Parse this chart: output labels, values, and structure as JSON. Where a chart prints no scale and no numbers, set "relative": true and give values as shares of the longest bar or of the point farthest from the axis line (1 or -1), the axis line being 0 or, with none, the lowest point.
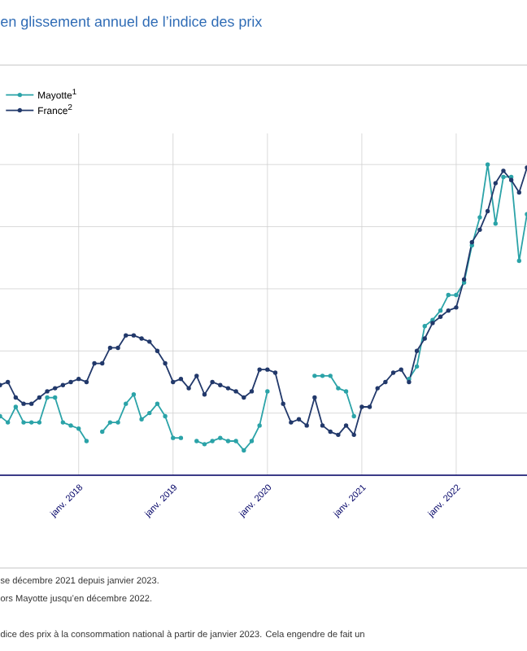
{
  "chart_data": {
    "type": "line",
    "title": "en glissement annuel de l’indice des prix",
    "relative": true,
    "x": [
      "2017-03",
      "2017-04",
      "2017-05",
      "2017-06",
      "2017-07",
      "2017-08",
      "2017-09",
      "2017-10",
      "2017-11",
      "2017-12",
      "2018-01",
      "2018-02",
      "2018-03",
      "2018-04",
      "2018-05",
      "2018-06",
      "2018-07",
      "2018-08",
      "2018-09",
      "2018-10",
      "2018-11",
      "2018-12",
      "2019-01",
      "2019-02",
      "2019-03",
      "2019-04",
      "2019-05",
      "2019-06",
      "2019-07",
      "2019-08",
      "2019-09",
      "2019-10",
      "2019-11",
      "2019-12",
      "2020-01",
      "2020-02",
      "2020-03",
      "2020-04",
      "2020-05",
      "2020-06",
      "2020-07",
      "2020-08",
      "2020-09",
      "2020-10",
      "2020-11",
      "2020-12",
      "2021-01",
      "2021-02",
      "2021-03",
      "2021-04",
      "2021-05",
      "2021-06",
      "2021-07",
      "2021-08",
      "2021-09",
      "2021-10",
      "2021-11",
      "2021-12",
      "2022-01",
      "2022-02",
      "2022-03",
      "2022-04",
      "2022-05",
      "2022-06",
      "2022-07",
      "2022-08",
      "2022-09",
      "2022-10"
    ],
    "series": [
      {
        "name": "Mayotte$^{1}$",
        "color": "#2ba3a8",
        "values": [
          0.19,
          0.17,
          0.22,
          0.17,
          0.17,
          0.17,
          0.25,
          0.25,
          0.17,
          0.16,
          0.15,
          0.11,
          null,
          0.14,
          0.17,
          0.17,
          0.23,
          0.26,
          0.18,
          0.2,
          0.23,
          0.19,
          0.12,
          0.12,
          null,
          0.11,
          0.1,
          0.11,
          0.12,
          0.11,
          0.11,
          0.08,
          0.11,
          0.16,
          0.27,
          null,
          null,
          null,
          null,
          null,
          0.32,
          0.32,
          0.32,
          0.28,
          0.27,
          0.19,
          null,
          null,
          null,
          null,
          null,
          null,
          0.31,
          0.35,
          0.48,
          0.5,
          0.53,
          0.58,
          0.58,
          0.62,
          0.74,
          0.83,
          1,
          0.81,
          0.96,
          0.96,
          0.69,
          0.84
        ]
      },
      {
        "name": "France$^{2}$",
        "color": "#22396b",
        "values": [
          0.29,
          0.3,
          0.25,
          0.23,
          0.23,
          0.25,
          0.27,
          0.28,
          0.29,
          0.3,
          0.31,
          0.3,
          0.36,
          0.36,
          0.41,
          0.41,
          0.45,
          0.45,
          0.44,
          0.43,
          0.4,
          0.36,
          0.3,
          0.31,
          0.28,
          0.32,
          0.26,
          0.3,
          0.29,
          0.28,
          0.27,
          0.25,
          0.27,
          0.34,
          0.34,
          0.33,
          0.23,
          0.17,
          0.18,
          0.16,
          0.25,
          0.16,
          0.14,
          0.13,
          0.16,
          0.13,
          0.22,
          0.22,
          0.28,
          0.3,
          0.33,
          0.34,
          0.3,
          0.4,
          0.44,
          0.49,
          0.51,
          0.53,
          0.54,
          0.63,
          0.75,
          0.79,
          0.85,
          0.94,
          0.98,
          0.95,
          0.91,
          0.99
        ]
      }
    ],
    "xlim": [
      "2017-03",
      "2022-10"
    ],
    "xticks": [
      {
        "value": "2018-01",
        "label": "janv. 2018"
      },
      {
        "value": "2019-01",
        "label": "janv. 2019"
      },
      {
        "value": "2020-01",
        "label": "janv. 2020"
      },
      {
        "value": "2021-01",
        "label": "janv. 2021"
      },
      {
        "value": "2022-01",
        "label": "janv. 2022"
      }
    ],
    "tick_labels": "x",
    "grid": true,
    "legend": "top left",
    "marker": "circle",
    "line_style": "solid",
    "annotations": [
      "se décembre 2021 depuis janvier 2023.",
      "ors Mayotte jusqu’en décembre 2022.",
      "dice des prix à la consommation national à partir de janvier 2023. Cela engendre de fait un"
    ]
  }
}
